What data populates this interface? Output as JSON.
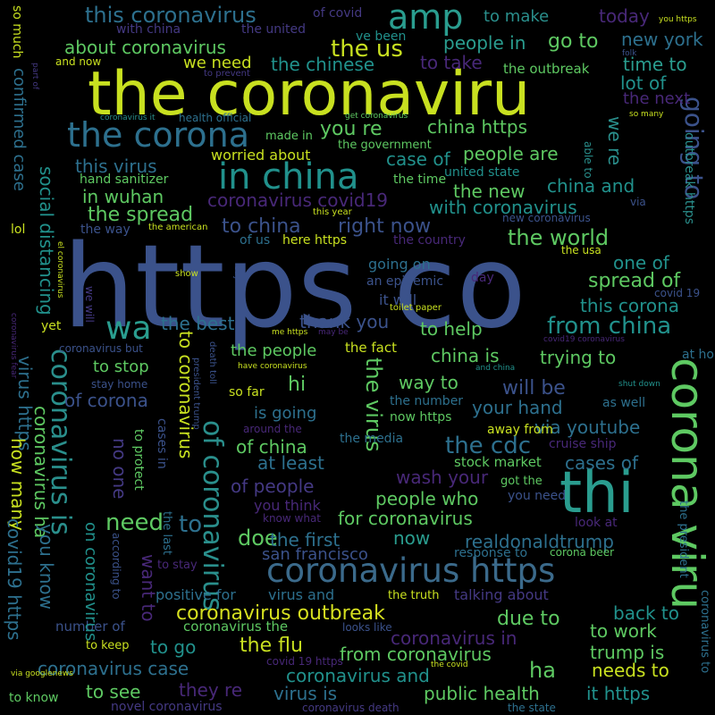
{
  "colors": {
    "background": "#000000",
    "yellow": "#c8e020",
    "green": "#5ec962",
    "teal": "#21918c",
    "blue": "#3b528b",
    "indigo": "#482878",
    "lime": "#addc30"
  },
  "words": {
    "https_co": "https co",
    "the_coronaviru": "the coronaviru",
    "corona_viru": "corona viru",
    "thi": "thi",
    "coronavirus_https": "coronavirus https",
    "the_corona": "the corona",
    "in_china": "in china",
    "amp": "amp",
    "coronavirus_is": "coronavirus is",
    "of_coronavirus": "of coronavirus",
    "wa": "wa",
    "going_to": "going to",
    "the_us": "the us",
    "coronavirus_outbreak": "coronavirus outbreak",
    "this_coronavirus": "this coronavirus",
    "about_coronavirus": "about coronavirus",
    "people_in": "people in",
    "go_to": "go to",
    "to_make": "to make",
    "today": "today",
    "new_york": "new york",
    "to_take": "to take",
    "the_outbreak": "the outbreak",
    "time_to": "time to",
    "lot_of": "lot of",
    "the_next": "the next",
    "we_need": "we need",
    "the_chinese": "the chinese",
    "you_re": "you re",
    "china_https": "china https",
    "we_re": "we re",
    "case_of": "case of",
    "people_are": "people are",
    "this_virus": "this virus",
    "worried_about": "worried about",
    "united_state": "united state",
    "the_new": "the new",
    "china_and": "china and",
    "with_coronavirus": "with coronavirus",
    "coronavirus_covid19": "coronavirus covid19",
    "in_wuhan": "in wuhan",
    "the_spread": "the spread",
    "to_china": "to china",
    "right_now": "right now",
    "the_world": "the world",
    "one_of": "one of",
    "spread_of": "spread of",
    "this_corona": "this corona",
    "from_china": "from china",
    "to_help": "to help",
    "thank_you": "thank you",
    "the_best": "the best",
    "the_people": "the people",
    "the_fact": "the fact",
    "china_is": "china is",
    "trying_to": "trying to",
    "to_stop": "to stop",
    "to_coronavirus": "to coronavirus",
    "the_virus": "the virus",
    "will_be": "will be",
    "way_to": "way to",
    "hi": "hi",
    "is_going": "is going",
    "your_hand": "your hand",
    "via_youtube": "via youtube",
    "the_cdc": "the cdc",
    "of_china": "of china",
    "at_least": "at least",
    "of_people": "of people",
    "coronavirus_ha": "coronavirus ha",
    "of_corona": "of corona",
    "need": "need",
    "to": "to",
    "doe": "doe",
    "wash_your": "wash your",
    "people_who": "people who",
    "for_coronavirus": "for coronavirus",
    "the_first": "the first",
    "now": "now",
    "realdonaldtrump": "realdonaldtrump",
    "san_francisco": "san francisco",
    "cases_of": "cases of",
    "stock_market": "stock market",
    "positive_for": "positive for",
    "virus_and": "virus and",
    "the_truth": "the truth",
    "talking_about": "talking about",
    "back_to": "back to",
    "due_to": "due to",
    "to_work": "to work",
    "the_flu": "the flu",
    "coronavirus_in": "coronavirus in",
    "to_go": "to go",
    "trump_is": "trump is",
    "from_coronavirus": "from coronavirus",
    "coronavirus_case": "coronavirus case",
    "coronavirus_and": "coronavirus and",
    "ha": "ha",
    "needs_to": "needs to",
    "to_see": "to see",
    "they_re": "they re",
    "virus_is": "virus is",
    "public_health": "public health",
    "it_https": "it https",
    "confirmed_case": "confirmed case",
    "social_distancing": "social distancing",
    "virus_https": "virus https",
    "how_many": "how many",
    "covid19_https": "covid19 https",
    "you_know": "you know",
    "on_coronavirus": "on coronavirus",
    "want_to": "want to",
    "no_one": "no one",
    "of_covid": "of covid",
    "with_china": "with china",
    "the_united": "the united",
    "ve_been": "ve been",
    "and_now": "and now",
    "so_much": "so much",
    "health_official": "health official",
    "made_in": "made in",
    "the_government": "the government",
    "hand_sanitizer": "hand sanitizer",
    "the_time": "the time",
    "the_way": "the way",
    "lol": "lol",
    "of_us": "of us",
    "here_https": "here https",
    "the_country": "the country",
    "going_on": "going on",
    "an_epidemic": "an epidemic",
    "it_will": "it will",
    "the_usa": "the usa",
    "new_coronavirus": "new coronavirus",
    "this_year": "this year",
    "the_american": "the american",
    "stay_home": "stay home",
    "so_far": "so far",
    "the_number": "the number",
    "now_https": "now https",
    "away_from": "away from",
    "around_the": "around the",
    "the_media": "the media",
    "cruise_ship": "cruise ship",
    "at_home": "at home",
    "as_well": "as well",
    "shut_down": "shut down",
    "got_the": "got the",
    "you_need": "you need",
    "you_think": "you think",
    "know_what": "know what",
    "look_at": "look at",
    "response_to": "response to",
    "corona_beer": "corona beer",
    "looks_like": "looks like",
    "covid_19_https": "covid 19 https",
    "the_covid": "the covid",
    "novel_coronavirus": "novel coronavirus",
    "coronavirus_death": "coronavirus death",
    "the_state": "the state",
    "number_of": "number of",
    "coronavirus_the": "coronavirus the",
    "to_keep": "to keep",
    "to_know": "to know",
    "to_say": "to say",
    "to_stay": "to stay",
    "to_protect": "to protect",
    "according_to": "according to",
    "the_last": "the last",
    "cases_in": "cases in",
    "president_trump": "president trump",
    "death_toll": "death toll",
    "outbreak_https": "outbreak https",
    "able_to": "able to",
    "the_president": "the president",
    "coronavirus_to": "coronavirus to",
    "via_googlenews": "via googlenews",
    "coronavirus_but": "coronavirus but",
    "yet": "yet",
    "we_will": "we will",
    "el_coronavirus": "el coronavirus",
    "coronavirus_fear": "coronavirus fear",
    "to_prevent": "to prevent",
    "part_of": "part of",
    "coronavirus_it": "coronavirus it",
    "get_coronavirus": "get coronavirus",
    "so_many": "so many",
    "folk": "folk",
    "via": "via",
    "show": "show",
    "say": "say",
    "day": "day",
    "toilet_paper": "toilet paper",
    "covid_19": "covid 19",
    "covid19_coronavirus": "covid19 coronavirus",
    "and_china": "and china",
    "have_coronavirus": "have coronavirus",
    "me_https": "me https",
    "may_be": "may be",
    "you_https": "you https"
  }
}
